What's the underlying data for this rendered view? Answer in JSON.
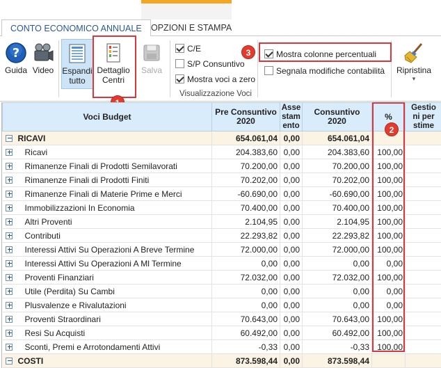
{
  "tabs": [
    {
      "label": "CONTO ECONOMICO ANNUALE"
    },
    {
      "label": "OPZIONI E STAMPA"
    }
  ],
  "ribbon": {
    "guida": "Guida",
    "video": "Video",
    "espandi_line1": "Espandi",
    "espandi_line2": "tutto",
    "dettaglio_line1": "Dettaglio",
    "dettaglio_line2": "Centri",
    "salva": "Salva",
    "ripristina": "Ripristina",
    "ripristina_arrow": "▾",
    "options": {
      "ce": {
        "label": "C/E",
        "checked": true
      },
      "sp": {
        "label": "S/P Consuntivo",
        "checked": false
      },
      "zero": {
        "label": "Mostra voci a zero",
        "checked": true
      },
      "pct": {
        "label": "Mostra colonne percentuali",
        "checked": true
      },
      "segnala": {
        "label": "Segnala modifiche contabilità",
        "checked": false
      }
    },
    "group_label": "Visualizzazione Voci"
  },
  "badges": {
    "b1": "1",
    "b2": "2",
    "b3": "3"
  },
  "grid": {
    "headers": {
      "voci": "Voci Budget",
      "pre_1": "Pre Consuntivo",
      "pre_2": "2020",
      "asse_1": "Asse",
      "asse_2": "stam",
      "asse_3": "ento",
      "cons_1": "Consuntivo",
      "cons_2": "2020",
      "pct": "%",
      "gest_1": "Gestio",
      "gest_2": "ni per",
      "gest_3": "stime"
    },
    "rows": [
      {
        "type": "group",
        "label": "RICAVI",
        "pre": "654.061,04",
        "asse": "0,00",
        "cons": "654.061,04",
        "pct": ""
      },
      {
        "type": "item",
        "label": "Ricavi",
        "pre": "204.383,60",
        "asse": "0,00",
        "cons": "204.383,60",
        "pct": "100,00"
      },
      {
        "type": "item",
        "label": "Rimanenze Finali di Prodotti Semilavorati",
        "pre": "70.200,00",
        "asse": "0,00",
        "cons": "70.200,00",
        "pct": "100,00"
      },
      {
        "type": "item",
        "label": "Rimanenze Finali di Prodotti Finiti",
        "pre": "70.202,00",
        "asse": "0,00",
        "cons": "70.202,00",
        "pct": "100,00"
      },
      {
        "type": "item",
        "label": "Rimanenze Finali di Materie Prime e Merci",
        "pre": "-60.690,00",
        "asse": "0,00",
        "cons": "-60.690,00",
        "pct": "100,00"
      },
      {
        "type": "item",
        "label": "Immobilizzazioni In Economia",
        "pre": "70.400,00",
        "asse": "0,00",
        "cons": "70.400,00",
        "pct": "100,00"
      },
      {
        "type": "item",
        "label": "Altri Proventi",
        "pre": "2.104,95",
        "asse": "0,00",
        "cons": "2.104,95",
        "pct": "100,00"
      },
      {
        "type": "item",
        "label": "Contributi",
        "pre": "22.293,82",
        "asse": "0,00",
        "cons": "22.293,82",
        "pct": "100,00"
      },
      {
        "type": "item",
        "label": "Interessi Attivi Su Operazioni A Breve Termine",
        "pre": "72.000,00",
        "asse": "0,00",
        "cons": "72.000,00",
        "pct": "100,00"
      },
      {
        "type": "item",
        "label": "Interessi Attivi Su Operazioni A Ml Termine",
        "pre": "0,00",
        "asse": "0,00",
        "cons": "0,00",
        "pct": "0,00"
      },
      {
        "type": "item",
        "label": "Proventi Finanziari",
        "pre": "72.032,00",
        "asse": "0,00",
        "cons": "72.032,00",
        "pct": "100,00"
      },
      {
        "type": "item",
        "label": "Utile (Perdita) Su Cambi",
        "pre": "0,00",
        "asse": "0,00",
        "cons": "0,00",
        "pct": "0,00"
      },
      {
        "type": "item",
        "label": "Plusvalenze e Rivalutazioni",
        "pre": "0,00",
        "asse": "0,00",
        "cons": "0,00",
        "pct": "0,00"
      },
      {
        "type": "item",
        "label": "Proventi Straordinari",
        "pre": "70.643,00",
        "asse": "0,00",
        "cons": "70.643,00",
        "pct": "100,00"
      },
      {
        "type": "item",
        "label": "Resi Su Acquisti",
        "pre": "60.492,00",
        "asse": "0,00",
        "cons": "60.492,00",
        "pct": "100,00"
      },
      {
        "type": "item",
        "label": "Sconti, Premi e Arrotondamenti  Attivi",
        "pre": "-0,33",
        "asse": "0,00",
        "cons": "-0,33",
        "pct": "100,00"
      },
      {
        "type": "group",
        "label": "COSTI",
        "pre": "873.598,44",
        "asse": "0,00",
        "cons": "873.598,44",
        "pct": ""
      }
    ]
  },
  "colors": {
    "accent": "#f5a623",
    "header_bg": "#d9ecfb",
    "group_bg": "#fbf3e4",
    "highlight": "#d9373d",
    "badge": "#e23c2f"
  }
}
